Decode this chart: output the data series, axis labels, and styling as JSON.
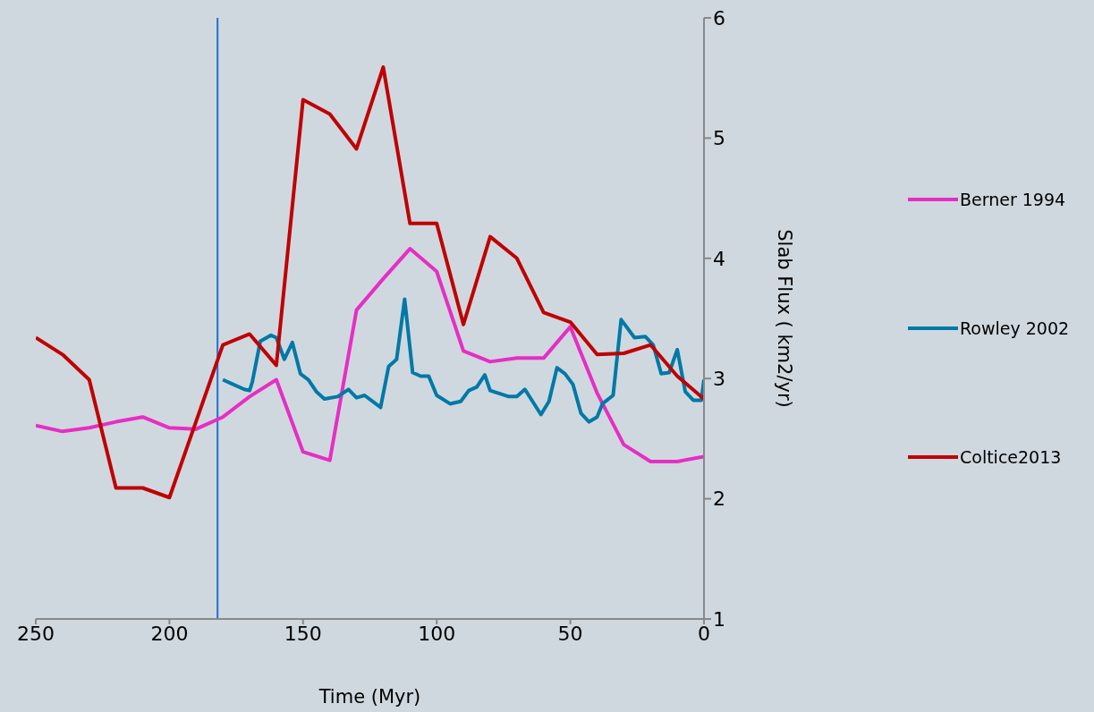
{
  "chart_data": {
    "type": "line",
    "xlabel": "Time (Myr)",
    "ylabel": "Slab Flux ( km2/yr)",
    "xlim": [
      250,
      0
    ],
    "xticks": [
      250,
      200,
      150,
      100,
      50,
      0
    ],
    "ylim": [
      1,
      6
    ],
    "yticks": [
      1,
      2,
      3,
      4,
      5,
      6
    ],
    "legend": "right",
    "marker": "none",
    "line_style": "solid",
    "series": [
      {
        "name": "Berner 1994",
        "color": "#e62ec4",
        "x": [
          250,
          240,
          230,
          220,
          210,
          200,
          190,
          180,
          170,
          160,
          150,
          140,
          130,
          120,
          110,
          100,
          90,
          80,
          70,
          60,
          50,
          40,
          30,
          20,
          10,
          0
        ],
        "values": [
          2.61,
          2.56,
          2.59,
          2.64,
          2.68,
          2.59,
          2.58,
          2.68,
          2.85,
          2.99,
          2.39,
          2.32,
          3.57,
          3.83,
          4.08,
          3.89,
          3.23,
          3.14,
          3.17,
          3.17,
          3.43,
          2.88,
          2.45,
          2.31,
          2.31,
          2.35
        ]
      },
      {
        "name": "Rowley 2002",
        "color": "#0079a6",
        "x": [
          180,
          172,
          170,
          169,
          166,
          162,
          160,
          157,
          154,
          151,
          148,
          145,
          142,
          137,
          133,
          130,
          127,
          121,
          118,
          115,
          112,
          109,
          106,
          103,
          100,
          95,
          91,
          88,
          85,
          82,
          80,
          73,
          70,
          67,
          61,
          58,
          55,
          52,
          49,
          46,
          43,
          40,
          38,
          34,
          31,
          26,
          22,
          19,
          16,
          13,
          10,
          7,
          4,
          1,
          0
        ],
        "values": [
          2.99,
          2.91,
          2.9,
          2.97,
          3.31,
          3.36,
          3.34,
          3.16,
          3.3,
          3.04,
          2.99,
          2.89,
          2.83,
          2.85,
          2.91,
          2.84,
          2.86,
          2.76,
          3.1,
          3.16,
          3.66,
          3.05,
          3.02,
          3.02,
          2.86,
          2.79,
          2.81,
          2.9,
          2.93,
          3.03,
          2.9,
          2.85,
          2.85,
          2.91,
          2.7,
          2.81,
          3.09,
          3.04,
          2.95,
          2.71,
          2.64,
          2.68,
          2.79,
          2.86,
          3.49,
          3.34,
          3.35,
          3.28,
          3.04,
          3.05,
          3.24,
          2.89,
          2.82,
          2.82,
          2.99
        ]
      },
      {
        "name": "Coltice2013",
        "color": "#c00000",
        "x": [
          250,
          240,
          230,
          220,
          210,
          200,
          180,
          170,
          160,
          150,
          140,
          130,
          120,
          110,
          100,
          90,
          80,
          70,
          60,
          50,
          40,
          30,
          20,
          10,
          0
        ],
        "values": [
          3.34,
          3.2,
          2.99,
          2.09,
          2.09,
          2.01,
          3.28,
          3.37,
          3.11,
          5.32,
          5.2,
          4.91,
          5.59,
          4.29,
          4.29,
          3.45,
          4.18,
          4.0,
          3.55,
          3.47,
          3.2,
          3.21,
          3.28,
          3.02,
          2.83
        ]
      }
    ],
    "ref_lines": [
      {
        "axis": "x",
        "value": 182,
        "color": "#1f6fd1"
      }
    ]
  }
}
